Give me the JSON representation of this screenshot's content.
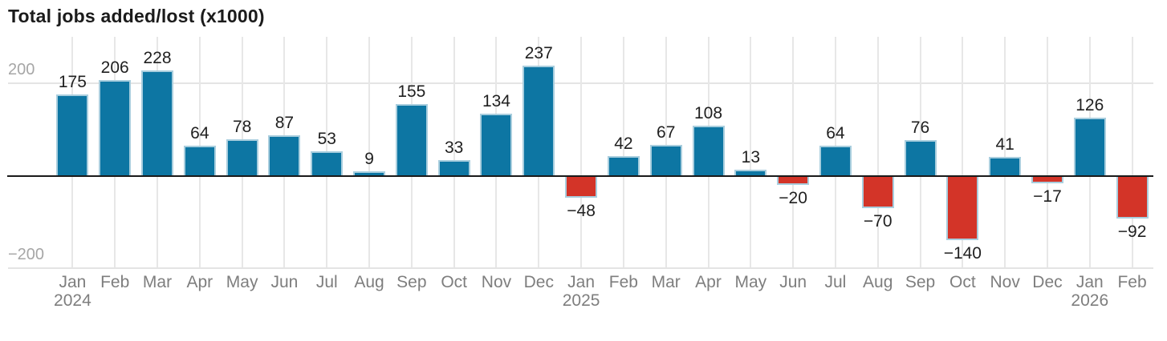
{
  "title": "Total jobs added/lost (x1000)",
  "colors": {
    "positive_bar": "#0d76a3",
    "negative_bar": "#d33428",
    "bar_stroke": "#a9cede",
    "gridline": "#e4e4e4",
    "zero_axis": "#1a1a1a",
    "value_label": "#1f1f1f",
    "x_tick_label": "#7e7e7e",
    "y_tick_label": "#a6a6a6",
    "title": "#1b1b1b",
    "background": "#ffffff"
  },
  "chart_data": {
    "type": "bar",
    "title": "Total jobs added/lost (x1000)",
    "categories": [
      "Jan 2024",
      "Feb",
      "Mar",
      "Apr",
      "May",
      "Jun",
      "Jul",
      "Aug",
      "Sep",
      "Oct",
      "Nov",
      "Dec",
      "Jan 2025",
      "Feb",
      "Mar",
      "Apr",
      "May",
      "Jun",
      "Jul",
      "Aug",
      "Sep",
      "Oct",
      "Nov",
      "Dec",
      "Jan 2026",
      "Feb"
    ],
    "values": [
      175,
      206,
      228,
      64,
      78,
      87,
      53,
      9,
      155,
      33,
      134,
      237,
      -48,
      42,
      67,
      108,
      13,
      -20,
      64,
      -70,
      76,
      -140,
      41,
      -17,
      126,
      -92
    ],
    "bar_labels_shown": true,
    "xlabel": "",
    "ylabel": "Total jobs added/lost (x1000)",
    "ylim": [
      -200,
      300
    ],
    "ytick_values": [
      200,
      -200
    ],
    "ytick_labels": [
      "200",
      "−200"
    ],
    "grid": "horizontal lines at 200 and -200; vertical line at each month center",
    "legend": "none"
  }
}
